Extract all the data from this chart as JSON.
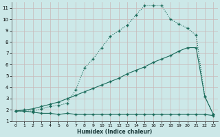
{
  "xlabel": "Humidex (Indice chaleur)",
  "bg_color": "#cce8e8",
  "grid_color": "#b0d4d4",
  "line_color": "#1a6b5a",
  "xlim": [
    -0.5,
    23.5
  ],
  "ylim": [
    1,
    11.5
  ],
  "xticks": [
    0,
    1,
    2,
    3,
    4,
    5,
    6,
    7,
    8,
    9,
    10,
    11,
    12,
    13,
    14,
    15,
    16,
    17,
    18,
    19,
    20,
    21,
    22,
    23
  ],
  "yticks": [
    1,
    2,
    3,
    4,
    5,
    6,
    7,
    8,
    9,
    10,
    11
  ],
  "curve1_x": [
    0,
    1,
    2,
    3,
    4,
    5,
    6,
    7,
    8,
    9,
    10,
    11,
    12,
    13,
    14,
    15,
    16,
    17,
    18,
    19,
    20,
    21,
    22,
    23
  ],
  "curve1_y": [
    1.9,
    1.9,
    1.8,
    1.7,
    1.7,
    1.6,
    1.7,
    1.6,
    1.6,
    1.6,
    1.6,
    1.6,
    1.6,
    1.6,
    1.6,
    1.6,
    1.6,
    1.6,
    1.6,
    1.6,
    1.6,
    1.6,
    1.6,
    1.5
  ],
  "curve2_x": [
    0,
    1,
    2,
    3,
    4,
    5,
    6,
    7,
    8,
    9,
    10,
    11,
    12,
    13,
    14,
    15,
    16,
    17,
    18,
    19,
    20,
    21,
    22,
    23
  ],
  "curve2_y": [
    1.9,
    2.0,
    2.1,
    2.3,
    2.5,
    2.7,
    3.0,
    3.3,
    3.6,
    3.9,
    4.2,
    4.5,
    4.8,
    5.2,
    5.5,
    5.8,
    6.2,
    6.5,
    6.8,
    7.2,
    7.5,
    7.5,
    3.2,
    1.6
  ],
  "curve3_x": [
    0,
    1,
    2,
    3,
    4,
    5,
    6,
    7,
    8,
    9,
    10,
    11,
    12,
    13,
    14,
    15,
    16,
    17,
    18,
    19,
    20,
    21,
    22,
    23
  ],
  "curve3_y": [
    1.9,
    1.9,
    1.9,
    2.1,
    2.3,
    2.4,
    2.6,
    3.8,
    5.7,
    6.5,
    7.5,
    8.5,
    9.0,
    9.5,
    10.4,
    11.2,
    11.2,
    11.2,
    10.0,
    9.6,
    9.2,
    8.6,
    3.2,
    1.6
  ]
}
